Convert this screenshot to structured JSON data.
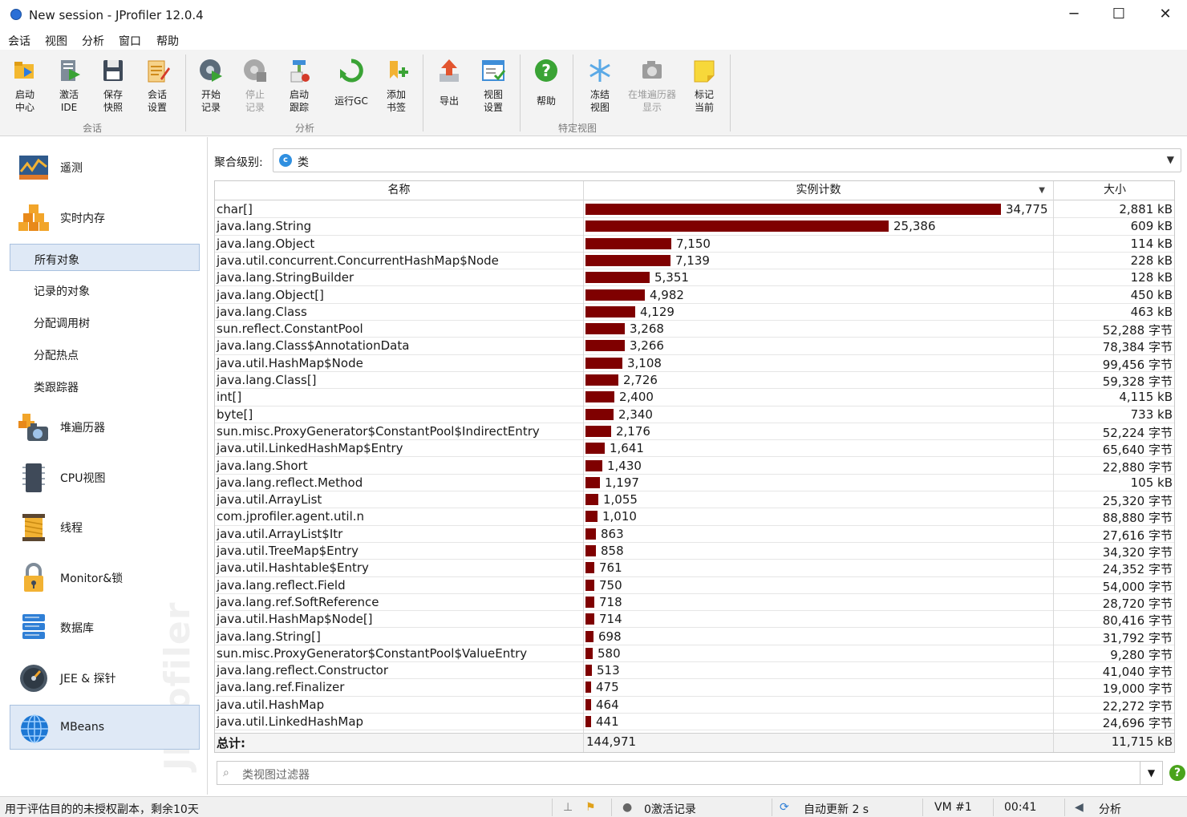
{
  "window": {
    "title": "New session - JProfiler 12.0.4",
    "controls": [
      "─",
      "☐",
      "✕"
    ]
  },
  "menu": [
    "会话",
    "视图",
    "分析",
    "窗口",
    "帮助"
  ],
  "toolbar": {
    "buttons": [
      {
        "label": "启动\n中心",
        "icon": "launch-center-icon",
        "enabled": true
      },
      {
        "label": "激活\nIDE",
        "icon": "activate-ide-icon",
        "enabled": true
      },
      {
        "label": "保存\n快照",
        "icon": "save-snapshot-icon",
        "enabled": true
      },
      {
        "label": "会话\n设置",
        "icon": "session-settings-icon",
        "enabled": true
      },
      {
        "label": "开始\n记录",
        "icon": "start-recording-icon",
        "enabled": true
      },
      {
        "label": "停止\n记录",
        "icon": "stop-recording-icon",
        "enabled": false
      },
      {
        "label": "启动\n跟踪",
        "icon": "start-tracking-icon",
        "enabled": true
      },
      {
        "label": "运行GC",
        "icon": "run-gc-icon",
        "enabled": true
      },
      {
        "label": "添加\n书签",
        "icon": "add-bookmark-icon",
        "enabled": true
      },
      {
        "label": "导出",
        "icon": "export-icon",
        "enabled": true
      },
      {
        "label": "视图\n设置",
        "icon": "view-settings-icon",
        "enabled": true
      },
      {
        "label": "帮助",
        "icon": "help-icon",
        "enabled": true
      },
      {
        "label": "冻结\n视图",
        "icon": "freeze-view-icon",
        "enabled": true
      },
      {
        "label": "在堆遍历器\n显示",
        "icon": "show-in-heap-walker-icon",
        "enabled": false
      },
      {
        "label": "标记\n当前",
        "icon": "mark-current-icon",
        "enabled": true
      }
    ],
    "groups": [
      "会话",
      "分析",
      "特定视图"
    ]
  },
  "sidebar": {
    "sections": [
      {
        "label": "遥测",
        "icon": "telemetry-icon"
      },
      {
        "label": "实时内存",
        "icon": "live-memory-icon"
      },
      {
        "label": "堆遍历器",
        "icon": "heap-walker-icon"
      },
      {
        "label": "CPU视图",
        "icon": "cpu-views-icon"
      },
      {
        "label": "线程",
        "icon": "threads-icon"
      },
      {
        "label": "Monitor&锁",
        "icon": "monitor-lock-icon"
      },
      {
        "label": "数据库",
        "icon": "database-icon"
      },
      {
        "label": "JEE & 探针",
        "icon": "jee-probes-icon"
      },
      {
        "label": "MBeans",
        "icon": "mbeans-icon"
      }
    ],
    "live_memory_items": [
      "所有对象",
      "记录的对象",
      "分配调用树",
      "分配热点",
      "类跟踪器"
    ],
    "selected_item": "所有对象",
    "watermark": "JProfiler"
  },
  "aggregation": {
    "label": "聚合级别:",
    "value": "类",
    "icon_letter": "c"
  },
  "table": {
    "columns": [
      "名称",
      "实例计数",
      "大小"
    ],
    "max_count": 34775,
    "rows": [
      {
        "name": "char[]",
        "count": 34775,
        "count_text": "34,775",
        "size": "2,881 kB"
      },
      {
        "name": "java.lang.String",
        "count": 25386,
        "count_text": "25,386",
        "size": "609 kB"
      },
      {
        "name": "java.lang.Object",
        "count": 7150,
        "count_text": "7,150",
        "size": "114 kB"
      },
      {
        "name": "java.util.concurrent.ConcurrentHashMap$Node",
        "count": 7139,
        "count_text": "7,139",
        "size": "228 kB"
      },
      {
        "name": "java.lang.StringBuilder",
        "count": 5351,
        "count_text": "5,351",
        "size": "128 kB"
      },
      {
        "name": "java.lang.Object[]",
        "count": 4982,
        "count_text": "4,982",
        "size": "450 kB"
      },
      {
        "name": "java.lang.Class",
        "count": 4129,
        "count_text": "4,129",
        "size": "463 kB"
      },
      {
        "name": "sun.reflect.ConstantPool",
        "count": 3268,
        "count_text": "3,268",
        "size": "52,288 字节"
      },
      {
        "name": "java.lang.Class$AnnotationData",
        "count": 3266,
        "count_text": "3,266",
        "size": "78,384 字节"
      },
      {
        "name": "java.util.HashMap$Node",
        "count": 3108,
        "count_text": "3,108",
        "size": "99,456 字节"
      },
      {
        "name": "java.lang.Class[]",
        "count": 2726,
        "count_text": "2,726",
        "size": "59,328 字节"
      },
      {
        "name": "int[]",
        "count": 2400,
        "count_text": "2,400",
        "size": "4,115 kB"
      },
      {
        "name": "byte[]",
        "count": 2340,
        "count_text": "2,340",
        "size": "733 kB"
      },
      {
        "name": "sun.misc.ProxyGenerator$ConstantPool$IndirectEntry",
        "count": 2176,
        "count_text": "2,176",
        "size": "52,224 字节"
      },
      {
        "name": "java.util.LinkedHashMap$Entry",
        "count": 1641,
        "count_text": "1,641",
        "size": "65,640 字节"
      },
      {
        "name": "java.lang.Short",
        "count": 1430,
        "count_text": "1,430",
        "size": "22,880 字节"
      },
      {
        "name": "java.lang.reflect.Method",
        "count": 1197,
        "count_text": "1,197",
        "size": "105 kB"
      },
      {
        "name": "java.util.ArrayList",
        "count": 1055,
        "count_text": "1,055",
        "size": "25,320 字节"
      },
      {
        "name": "com.jprofiler.agent.util.n",
        "count": 1010,
        "count_text": "1,010",
        "size": "88,880 字节"
      },
      {
        "name": "java.util.ArrayList$Itr",
        "count": 863,
        "count_text": "863",
        "size": "27,616 字节"
      },
      {
        "name": "java.util.TreeMap$Entry",
        "count": 858,
        "count_text": "858",
        "size": "34,320 字节"
      },
      {
        "name": "java.util.Hashtable$Entry",
        "count": 761,
        "count_text": "761",
        "size": "24,352 字节"
      },
      {
        "name": "java.lang.reflect.Field",
        "count": 750,
        "count_text": "750",
        "size": "54,000 字节"
      },
      {
        "name": "java.lang.ref.SoftReference",
        "count": 718,
        "count_text": "718",
        "size": "28,720 字节"
      },
      {
        "name": "java.util.HashMap$Node[]",
        "count": 714,
        "count_text": "714",
        "size": "80,416 字节"
      },
      {
        "name": "java.lang.String[]",
        "count": 698,
        "count_text": "698",
        "size": "31,792 字节"
      },
      {
        "name": "sun.misc.ProxyGenerator$ConstantPool$ValueEntry",
        "count": 580,
        "count_text": "580",
        "size": "9,280 字节"
      },
      {
        "name": "java.lang.reflect.Constructor",
        "count": 513,
        "count_text": "513",
        "size": "41,040 字节"
      },
      {
        "name": "java.lang.ref.Finalizer",
        "count": 475,
        "count_text": "475",
        "size": "19,000 字节"
      },
      {
        "name": "java.util.HashMap",
        "count": 464,
        "count_text": "464",
        "size": "22,272 字节"
      },
      {
        "name": "java.util.LinkedHashMap",
        "count": 441,
        "count_text": "441",
        "size": "24,696 字节"
      }
    ],
    "totals": {
      "label": "总计:",
      "count": "144,971",
      "size": "11,715 kB"
    }
  },
  "filter": {
    "placeholder": "类视图过滤器"
  },
  "status": {
    "license": "用于评估目的的未授权副本，剩余10天",
    "recordings": "0激活记录",
    "auto_update": "自动更新 2 s",
    "vm": "VM #1",
    "elapsed": "00:41",
    "mode": "分析"
  },
  "colors": {
    "bar": "#7f0000",
    "selection": "#dfe9f6",
    "toolbar_bg": "#f3f3f3"
  }
}
